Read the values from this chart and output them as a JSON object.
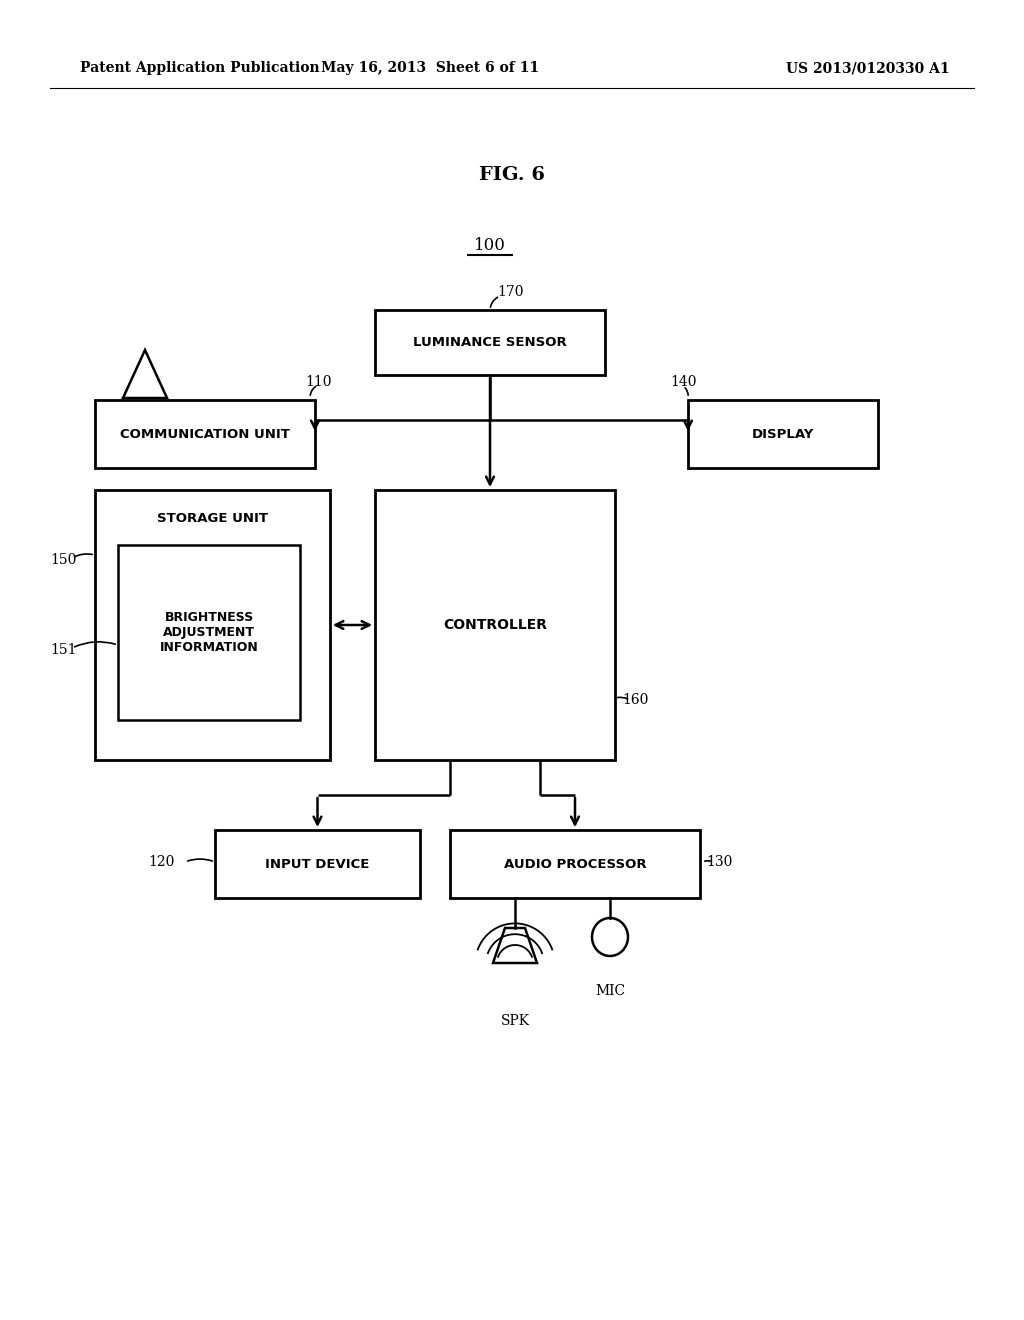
{
  "bg_color": "#ffffff",
  "header_left": "Patent Application Publication",
  "header_mid": "May 16, 2013  Sheet 6 of 11",
  "header_right": "US 2013/0120330 A1",
  "fig_label": "FIG. 6",
  "system_label": "100"
}
